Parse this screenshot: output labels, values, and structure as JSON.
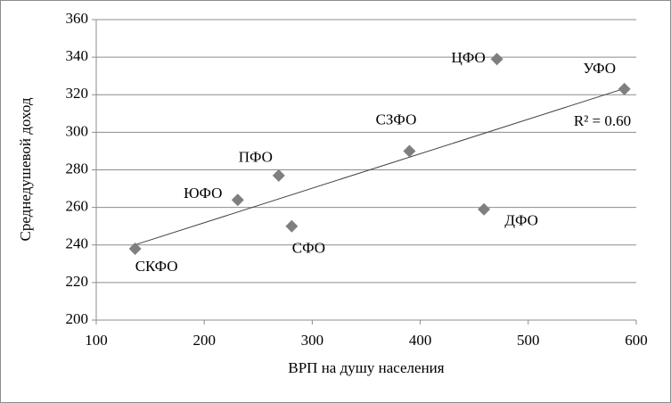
{
  "chart_data": {
    "type": "scatter",
    "x": [
      136,
      231,
      269,
      281,
      390,
      459,
      471,
      589
    ],
    "values": [
      238,
      264,
      277,
      250,
      290,
      259,
      339,
      323
    ],
    "point_labels": [
      "СКФО",
      "ЮФО",
      "ПФО",
      "СФО",
      "СЗФО",
      "ДФО",
      "ЦФО",
      "УФО"
    ],
    "color": "#7f7f7f",
    "xlim": [
      100,
      600
    ],
    "xticks": [
      100,
      200,
      300,
      400,
      500,
      600
    ],
    "ylim": [
      200,
      360
    ],
    "yticks": [
      200,
      220,
      240,
      260,
      280,
      300,
      320,
      340,
      360
    ],
    "x_label": "ВРП на душу населения",
    "y_label": "Среднедушевой доход",
    "grid": true,
    "trendline": true,
    "annotation": "R² = 0.60"
  }
}
